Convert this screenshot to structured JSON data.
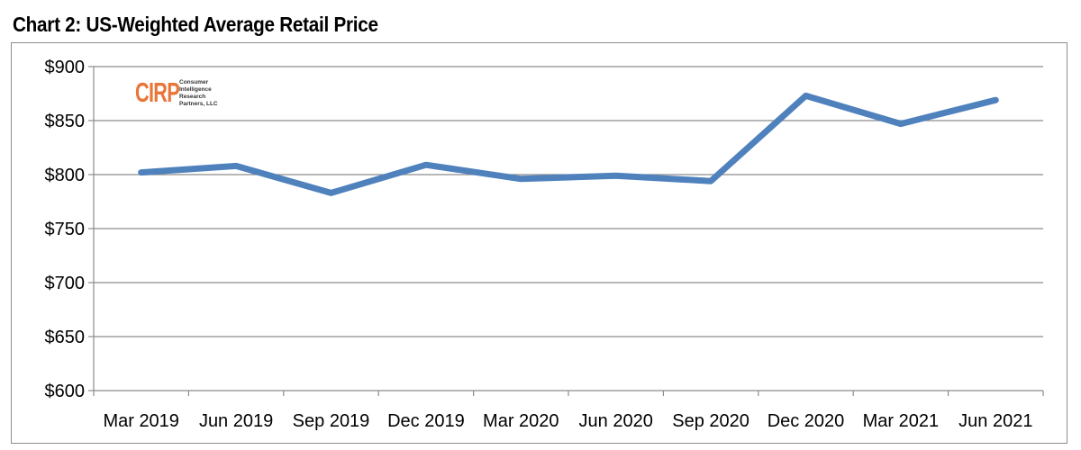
{
  "title": "Chart 2: US-Weighted Average Retail Price",
  "logo": {
    "text": "CIRP",
    "lines": [
      "Consumer",
      "Intelligence",
      "Research",
      "Partners, LLC"
    ]
  },
  "chart_data": {
    "type": "line",
    "title": "Chart 2: US-Weighted Average Retail Price",
    "xlabel": "",
    "ylabel": "",
    "categories": [
      "Mar 2019",
      "Jun 2019",
      "Sep 2019",
      "Dec 2019",
      "Mar 2020",
      "Jun 2020",
      "Sep 2020",
      "Dec 2020",
      "Mar 2021",
      "Jun 2021"
    ],
    "series": [
      {
        "values": [
          802,
          808,
          783,
          809,
          796,
          799,
          794,
          873,
          847,
          869
        ],
        "color": "#4f81bd"
      }
    ],
    "ylim": [
      600,
      900
    ],
    "yticks": [
      600,
      650,
      700,
      750,
      800,
      850,
      900
    ],
    "ytick_labels": [
      "$600",
      "$650",
      "$700",
      "$750",
      "$800",
      "$850",
      "$900"
    ],
    "grid": true,
    "gridline_color": "#8c8c8c"
  }
}
